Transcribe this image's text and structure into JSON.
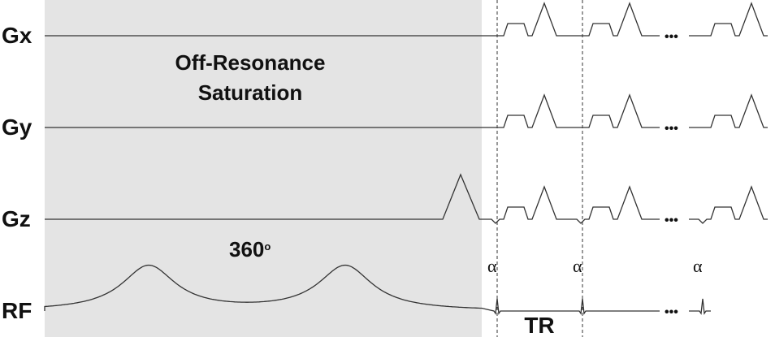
{
  "channels": [
    "Gx",
    "Gy",
    "Gz",
    "RF"
  ],
  "saturation": {
    "line1": "Off-Resonance",
    "line2": "Saturation"
  },
  "flip": {
    "value": "360",
    "unit": "o"
  },
  "alpha_labels": [
    "α",
    "α",
    "α"
  ],
  "tr_label": "TR",
  "ellipsis": "•••"
}
